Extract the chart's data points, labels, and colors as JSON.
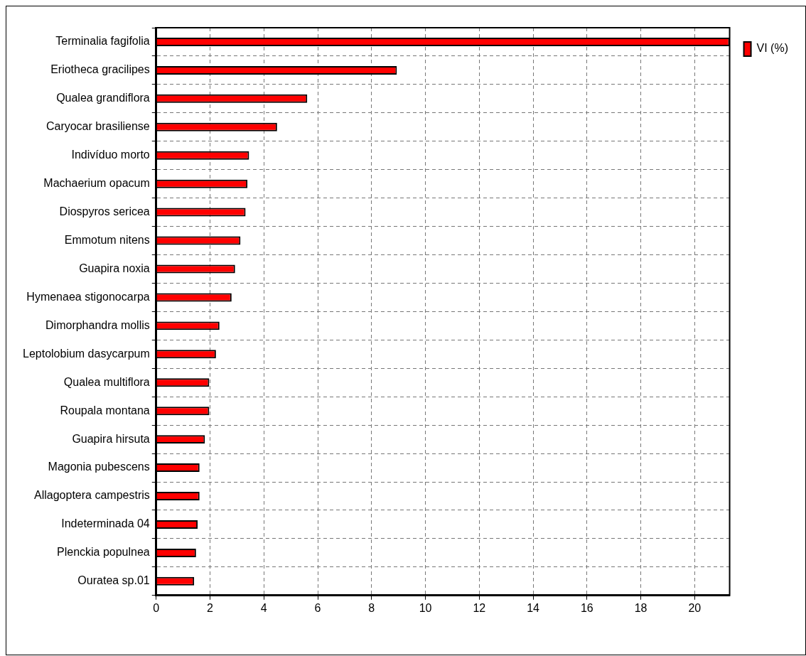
{
  "chart_data": {
    "type": "bar",
    "orientation": "horizontal",
    "categories": [
      "Terminalia fagifolia",
      "Eriotheca gracilipes",
      "Qualea grandiflora",
      "Caryocar brasiliense",
      "Indivíduo morto",
      "Machaerium opacum",
      "Diospyros sericea",
      "Emmotum nitens",
      "Guapira noxia",
      "Hymenaea stigonocarpa",
      "Dimorphandra mollis",
      "Leptolobium dasycarpum",
      "Qualea multiflora",
      "Roupala montana",
      "Guapira hirsuta",
      "Magonia pubescens",
      "Allagoptera campestris",
      "Indeterminada 04",
      "Plenckia populnea",
      "Ouratea sp.01"
    ],
    "series": [
      {
        "name": "VI (%)",
        "color": "#ff0000",
        "values": [
          21.3,
          8.94,
          5.61,
          4.49,
          3.45,
          3.39,
          3.32,
          3.13,
          2.93,
          2.8,
          2.35,
          2.22,
          1.97,
          1.97,
          1.81,
          1.61,
          1.61,
          1.54,
          1.48,
          1.41
        ]
      }
    ],
    "xlim": [
      0,
      21.3
    ],
    "xticks": [
      0,
      2,
      4,
      6,
      8,
      10,
      12,
      14,
      16,
      18,
      20
    ],
    "grid": true,
    "legend": "top right"
  }
}
